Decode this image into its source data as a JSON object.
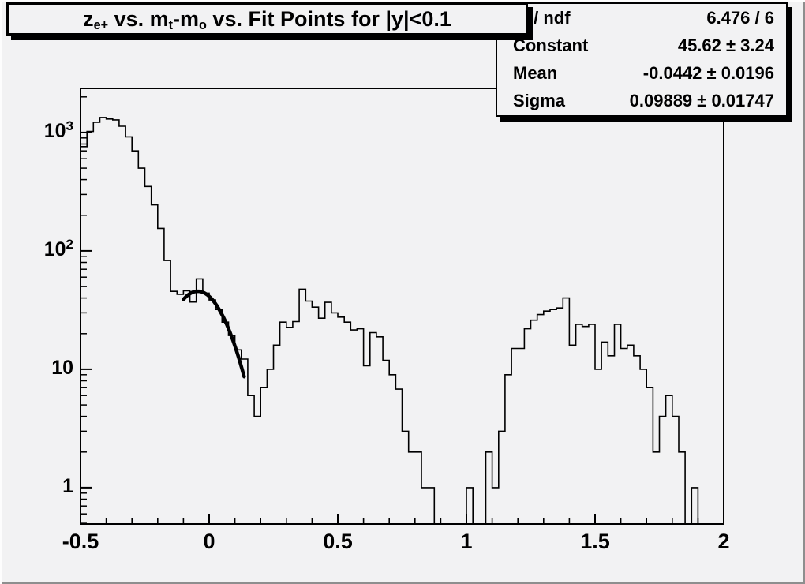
{
  "canvas": {
    "background": "#f2f2f3",
    "foreground": "#000000"
  },
  "title": {
    "plain": "z_e+ vs. m_t-m_o vs. Fit Points for |y|<0.1",
    "segments": [
      {
        "t": "z"
      },
      {
        "sub": "e+"
      },
      {
        "t": " vs. m"
      },
      {
        "sub": "t"
      },
      {
        "t": "-m"
      },
      {
        "sub": "o"
      },
      {
        "t": " vs. Fit Points for |y|<0.1"
      }
    ]
  },
  "stats": {
    "rows": [
      {
        "label": [
          {
            "t": "χ"
          },
          {
            "sup": "2"
          },
          {
            "t": " / ndf"
          }
        ],
        "label_plain": "chi2 / ndf",
        "value": "6.476 / 6"
      },
      {
        "label": [
          {
            "t": "Constant"
          }
        ],
        "label_plain": "Constant",
        "value": "45.62 ± 3.24"
      },
      {
        "label": [
          {
            "t": "Mean"
          }
        ],
        "label_plain": "Mean",
        "value": "-0.0442 ± 0.0196"
      },
      {
        "label": [
          {
            "t": "Sigma"
          }
        ],
        "label_plain": "Sigma",
        "value": "0.09889 ± 0.01747"
      }
    ]
  },
  "chart_data": {
    "type": "bar",
    "style": "step-histogram, log y-axis, ROOT canvas",
    "title": "z_e+ vs. m_t-m_o vs. Fit Points for |y|<0.1",
    "xlabel": "",
    "ylabel": "",
    "grid": false,
    "x_axis": {
      "min": -0.5,
      "max": 2,
      "major_ticks": [
        -0.5,
        0,
        0.5,
        1,
        1.5,
        2
      ],
      "tick_labels": [
        "-0.5",
        "0",
        "0.5",
        "1",
        "1.5",
        "2"
      ],
      "minor_step": 0.1
    },
    "y_axis": {
      "scale": "log",
      "min": 0.493,
      "max": 2360,
      "major_ticks": [
        1,
        10,
        100,
        1000
      ],
      "tick_labels": [
        {
          "base": "1",
          "exp": ""
        },
        {
          "base": "10",
          "exp": ""
        },
        {
          "base": "10",
          "exp": "2"
        },
        {
          "base": "10",
          "exp": "3"
        }
      ]
    },
    "bins": {
      "start": -0.5,
      "width": 0.025,
      "values": [
        760,
        1020,
        1220,
        1340,
        1300,
        1280,
        1130,
        920,
        700,
        500,
        350,
        245,
        155,
        83,
        45.5,
        43,
        46,
        37,
        58,
        44,
        38.5,
        32,
        25,
        19.3,
        14.6,
        12.2,
        6,
        4,
        7,
        10,
        16,
        25,
        22.6,
        25.3,
        47.5,
        37.7,
        33.5,
        27,
        36.8,
        30,
        27.6,
        25,
        21.5,
        22,
        10.7,
        20.4,
        18.8,
        11.9,
        9,
        6.8,
        3,
        2,
        2,
        1,
        1,
        0,
        0,
        0,
        0,
        0,
        1,
        0,
        0,
        2,
        1,
        3,
        9,
        15,
        15,
        22,
        26,
        29,
        31,
        32,
        33,
        40,
        16,
        24,
        23,
        24,
        10,
        17,
        13,
        24,
        15,
        16,
        13,
        10,
        7,
        2,
        4,
        6,
        4,
        2,
        0,
        1,
        0,
        0,
        0,
        0
      ]
    },
    "fit": {
      "shape": "gaussian",
      "constant": 45.62,
      "mean": -0.0442,
      "sigma": 0.09889,
      "x_range": [
        -0.1,
        0.137
      ],
      "chi2_ndf": "6.476 / 6"
    },
    "legend_position": "stats box, top-right"
  }
}
